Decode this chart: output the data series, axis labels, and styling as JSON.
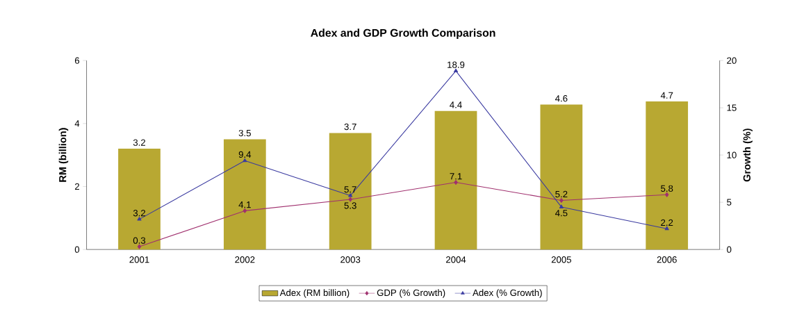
{
  "chart_data": {
    "type": "bar",
    "title": "Adex and GDP Growth Comparison",
    "ylabel": "RM (billion)",
    "y2label": "Growth (%)",
    "categories": [
      "2001",
      "2002",
      "2003",
      "2004",
      "2005",
      "2006"
    ],
    "ylim": [
      0,
      6
    ],
    "yticks": [
      0,
      2,
      4,
      6
    ],
    "y2lim": [
      0,
      20
    ],
    "y2ticks": [
      0,
      5,
      10,
      15,
      20
    ],
    "legend": "bottom",
    "series": [
      {
        "name": "Adex (RM billion)",
        "color": "#b8a832",
        "values": [
          3.2,
          3.5,
          3.7,
          4.4,
          4.6,
          4.7
        ],
        "value_labels": [
          "3.2",
          "3.5",
          "3.7",
          "4.4",
          "4.6",
          "4.7"
        ]
      },
      {
        "name": "GDP (% Growth)",
        "type": "line",
        "axis": "y2",
        "color": "#a0306e",
        "marker": "diamond",
        "values": [
          0.3,
          4.1,
          5.3,
          7.1,
          5.2,
          5.8
        ],
        "value_labels": [
          "0.3",
          "4.1",
          "5.3",
          "7.1",
          "5.2",
          "5.8"
        ]
      },
      {
        "name": "Adex (% Growth)",
        "type": "line",
        "axis": "y2",
        "color": "#3a3aa0",
        "marker": "triangle",
        "values": [
          3.2,
          9.4,
          5.7,
          18.9,
          4.5,
          2.2
        ],
        "value_labels": [
          "3.2",
          "9.4",
          "5.7",
          "18.9",
          "4.5",
          "2.2"
        ]
      }
    ]
  }
}
